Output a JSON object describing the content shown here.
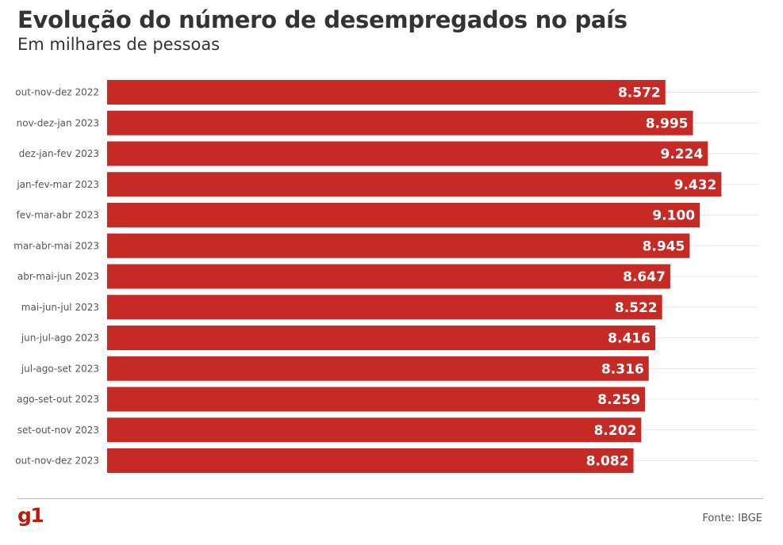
{
  "header": {
    "title": "Evolução do número de desempregados no país",
    "subtitle": "Em milhares de pessoas"
  },
  "footer": {
    "logo": "g1",
    "source": "Fonte: IBGE"
  },
  "colors": {
    "bar": "#c62a25",
    "brand": "#c4170c",
    "text": "#333333",
    "grid": "#e6e6e6"
  },
  "chart_data": {
    "type": "bar",
    "orientation": "horizontal",
    "title": "Evolução do número de desempregados no país",
    "subtitle": "Em milhares de pessoas",
    "categories": [
      "out-nov-dez 2022",
      "nov-dez-jan 2023",
      "dez-jan-fev 2023",
      "jan-fev-mar 2023",
      "fev-mar-abr 2023",
      "mar-abr-mai 2023",
      "abr-mai-jun 2023",
      "mai-jun-jul 2023",
      "jun-jul-ago 2023",
      "jul-ago-set 2023",
      "ago-set-out 2023",
      "set-out-nov 2023",
      "out-nov-dez 2023"
    ],
    "values": [
      8572,
      8995,
      9224,
      9432,
      9100,
      8945,
      8647,
      8522,
      8416,
      8316,
      8259,
      8202,
      8082
    ],
    "value_labels": [
      "8.572",
      "8.995",
      "9.224",
      "9.432",
      "9.100",
      "8.945",
      "8.647",
      "8.522",
      "8.416",
      "8.316",
      "8.259",
      "8.202",
      "8.082"
    ],
    "xlim": [
      0,
      10000
    ],
    "grid": true,
    "legend": "none"
  }
}
